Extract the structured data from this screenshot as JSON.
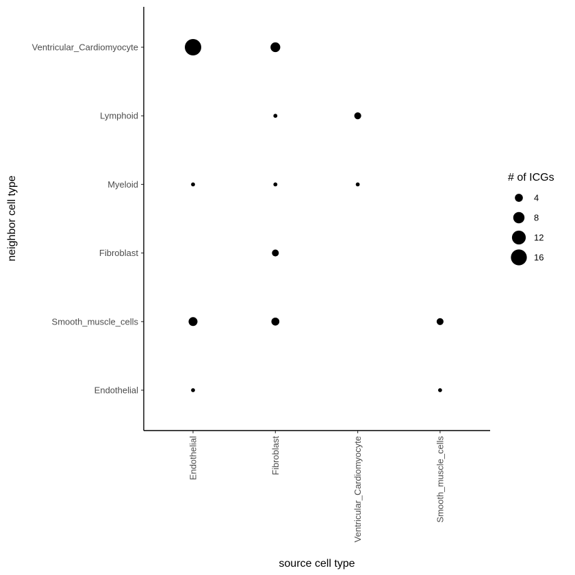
{
  "chart_data": {
    "type": "scatter",
    "title": "",
    "xlabel": "source cell type",
    "ylabel": "neighbor cell type",
    "x_categories": [
      "Endothelial",
      "Fibroblast",
      "Ventricular_Cardiomyocyte",
      "Smooth_muscle_cells"
    ],
    "y_categories": [
      "Endothelial",
      "Smooth_muscle_cells",
      "Fibroblast",
      "Myeloid",
      "Lymphoid",
      "Ventricular_Cardiomyocyte"
    ],
    "points": [
      {
        "x": "Endothelial",
        "y": "Ventricular_Cardiomyocyte",
        "size": 17
      },
      {
        "x": "Fibroblast",
        "y": "Ventricular_Cardiomyocyte",
        "size": 6
      },
      {
        "x": "Fibroblast",
        "y": "Lymphoid",
        "size": 1
      },
      {
        "x": "Ventricular_Cardiomyocyte",
        "y": "Lymphoid",
        "size": 3
      },
      {
        "x": "Endothelial",
        "y": "Myeloid",
        "size": 1
      },
      {
        "x": "Fibroblast",
        "y": "Myeloid",
        "size": 1
      },
      {
        "x": "Ventricular_Cardiomyocyte",
        "y": "Myeloid",
        "size": 1
      },
      {
        "x": "Fibroblast",
        "y": "Fibroblast",
        "size": 3
      },
      {
        "x": "Endothelial",
        "y": "Smooth_muscle_cells",
        "size": 5
      },
      {
        "x": "Fibroblast",
        "y": "Smooth_muscle_cells",
        "size": 4
      },
      {
        "x": "Smooth_muscle_cells",
        "y": "Smooth_muscle_cells",
        "size": 3
      },
      {
        "x": "Endothelial",
        "y": "Endothelial",
        "size": 1
      },
      {
        "x": "Smooth_muscle_cells",
        "y": "Endothelial",
        "size": 1
      }
    ],
    "size_legend": {
      "title": "# of ICGs",
      "breaks": [
        4,
        8,
        12,
        16
      ],
      "labels": [
        "4",
        "8",
        "12",
        "16"
      ]
    },
    "legend_position": "right",
    "grid": false,
    "point_color": "#000000"
  }
}
